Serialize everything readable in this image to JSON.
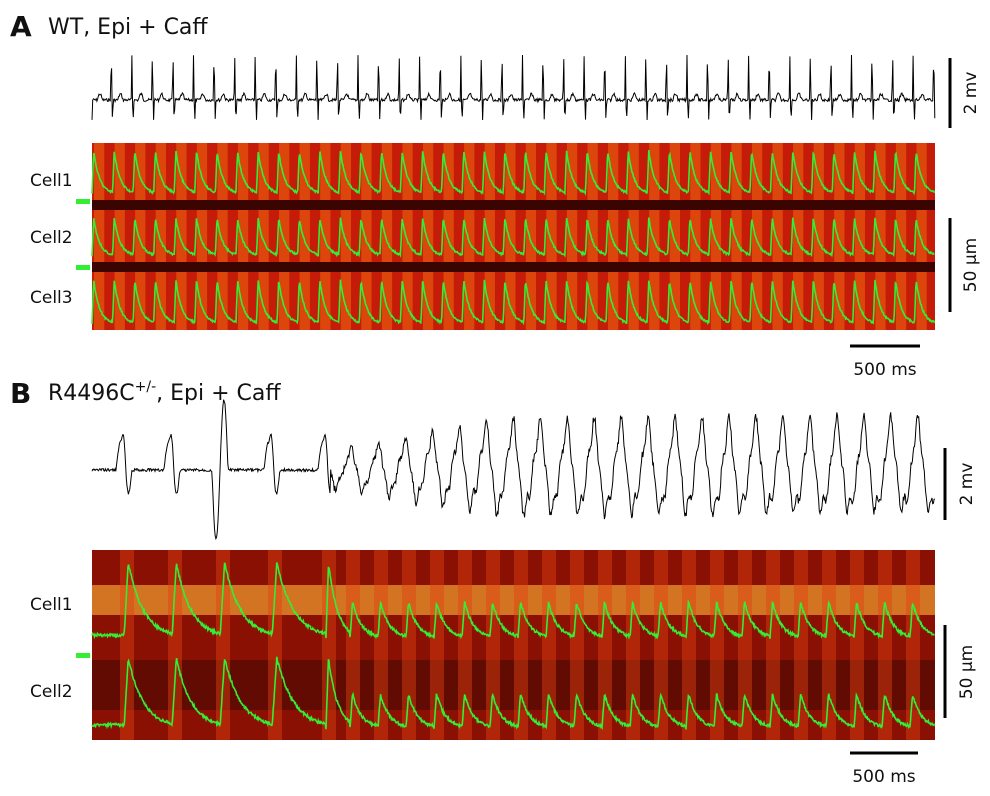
{
  "panels": [
    {
      "label": "A",
      "title": "WT,  Epi + Caff",
      "cells": [
        "Cell1",
        "Cell2",
        "Cell3"
      ],
      "voltage_scale": "2 mv",
      "space_scale": "50 µm",
      "time_scale": "500 ms"
    },
    {
      "label": "B",
      "title": "R4496C",
      "title_superscript": "+/-",
      "title_rest": ",  Epi + Caff",
      "cells": [
        "Cell1",
        "Cell2"
      ],
      "voltage_scale": "2 mv",
      "space_scale": "50 µm",
      "time_scale": "500 ms"
    }
  ]
}
